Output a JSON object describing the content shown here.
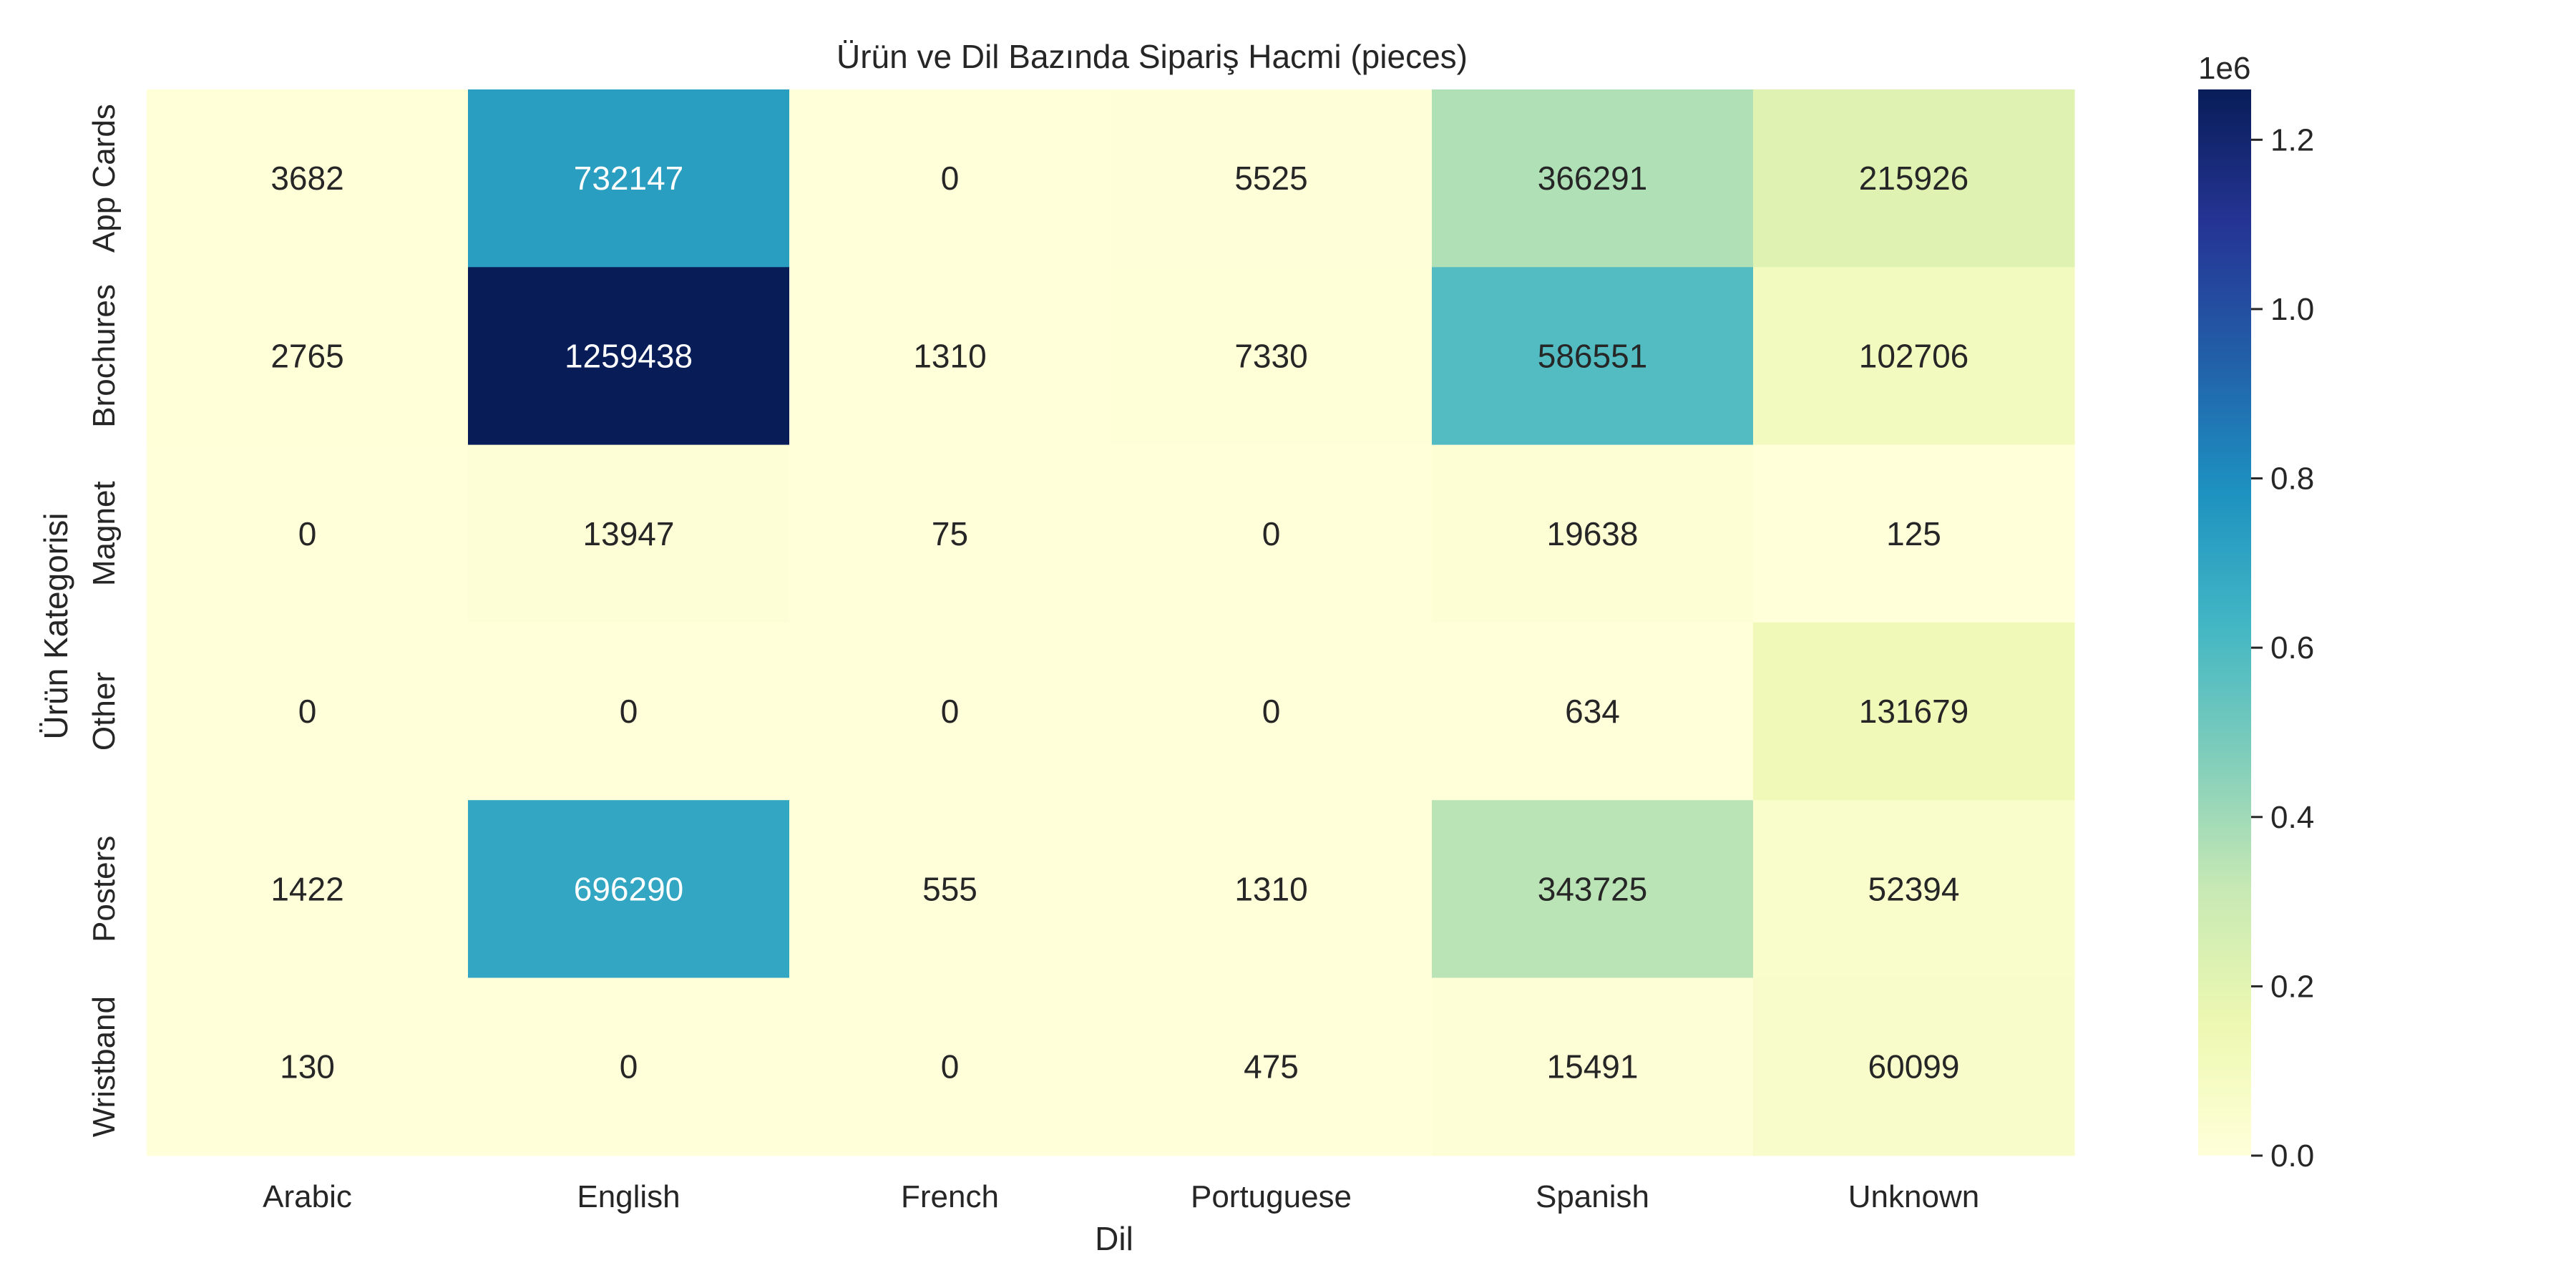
{
  "chart_data": {
    "type": "heatmap",
    "title": "Ürün ve Dil Bazında Sipariş Hacmi (pieces)",
    "xlabel": "Dil",
    "ylabel": "Ürün Kategorisi",
    "x_categories": [
      "Arabic",
      "English",
      "French",
      "Portuguese",
      "Spanish",
      "Unknown"
    ],
    "y_categories": [
      "App Cards",
      "Brochures",
      "Magnet",
      "Other",
      "Posters",
      "Wristband"
    ],
    "values": [
      [
        3682,
        732147,
        0,
        5525,
        366291,
        215926
      ],
      [
        2765,
        1259438,
        1310,
        7330,
        586551,
        102706
      ],
      [
        0,
        13947,
        75,
        0,
        19638,
        125
      ],
      [
        0,
        0,
        0,
        0,
        634,
        131679
      ],
      [
        1422,
        696290,
        555,
        1310,
        343725,
        52394
      ],
      [
        130,
        0,
        0,
        475,
        15491,
        60099
      ]
    ],
    "colorbar": {
      "colormap": "YlGnBu",
      "min": 0,
      "max": 1259438,
      "ticks": [
        0.0,
        0.2,
        0.4,
        0.6,
        0.8,
        1.0,
        1.2
      ],
      "tick_labels": [
        "0.0",
        "0.2",
        "0.4",
        "0.6",
        "0.8",
        "1.0",
        "1.2"
      ],
      "scale_label": "1e6"
    },
    "annotations": true,
    "grid": false
  }
}
